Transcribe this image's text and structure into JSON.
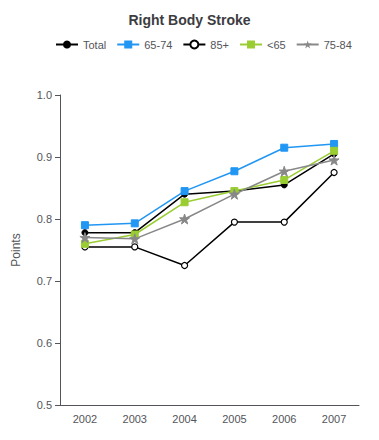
{
  "chart_data": {
    "type": "line",
    "title": "Right Body Stroke",
    "ylabel": "Points",
    "categories": [
      "2002",
      "2003",
      "2004",
      "2005",
      "2006",
      "2007"
    ],
    "series": [
      {
        "name": "Total",
        "color": "#000000",
        "marker": "circle",
        "line_style": "solid",
        "values": [
          0.778,
          0.778,
          0.84,
          0.845,
          0.855,
          0.905
        ]
      },
      {
        "name": "65-74",
        "color": "#2196F3",
        "marker": "square",
        "line_style": "solid",
        "values": [
          0.79,
          0.793,
          0.845,
          0.877,
          0.915,
          0.921
        ]
      },
      {
        "name": "85+",
        "color": "#000000",
        "marker": "open_circle",
        "line_style": "solid",
        "values": [
          0.755,
          0.755,
          0.725,
          0.795,
          0.795,
          0.875
        ]
      },
      {
        "name": "<65",
        "color": "#9ACD32",
        "marker": "square",
        "line_style": "solid",
        "values": [
          0.76,
          0.775,
          0.827,
          0.845,
          0.863,
          0.91
        ]
      },
      {
        "name": "75-84",
        "color": "#888888",
        "marker": "star",
        "line_style": "solid",
        "values": [
          0.77,
          0.768,
          0.8,
          0.84,
          0.877,
          0.895
        ]
      }
    ],
    "ylim": [
      0.5,
      1.0
    ],
    "yticks": [
      0.5,
      0.6,
      0.7,
      0.8,
      0.9,
      {
        "value": 1.0,
        "label": "1.0"
      }
    ],
    "grid": false,
    "legend": "top left"
  }
}
